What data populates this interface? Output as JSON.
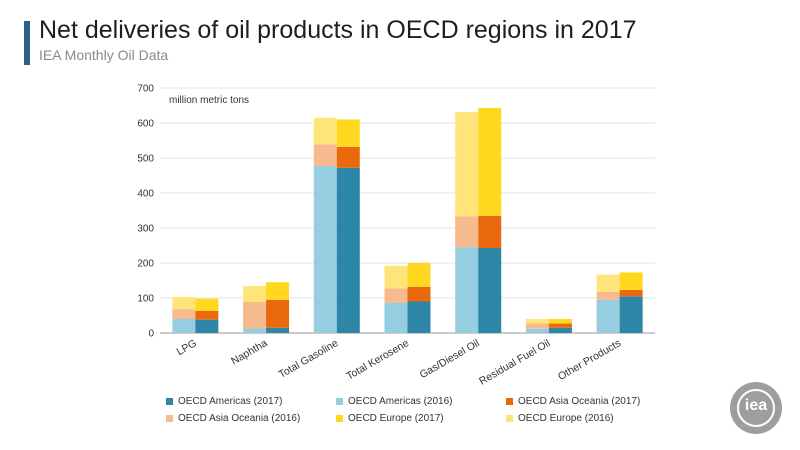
{
  "header": {
    "title": "Net deliveries of oil products in OECD regions in 2017",
    "subtitle": "IEA Monthly Oil Data"
  },
  "logo": {
    "text": "iea"
  },
  "chart_data": {
    "type": "bar",
    "stacked": true,
    "grouped": true,
    "unit_label": "million metric tons",
    "categories": [
      "LPG",
      "Naphtha",
      "Total Gasoline",
      "Total Kerosene",
      "Gas/Diesel Oil",
      "Residual Fuel Oil",
      "Other Products"
    ],
    "ylim": [
      0,
      700
    ],
    "yticks": [
      0,
      100,
      200,
      300,
      400,
      500,
      600,
      700
    ],
    "grid": true,
    "legend_position": "bottom",
    "series": [
      {
        "name": "OECD Americas (2017)",
        "group": "2017",
        "color": "#2e86a6",
        "values": [
          38,
          15,
          472,
          90,
          243,
          15,
          105
        ]
      },
      {
        "name": "OECD Americas (2016)",
        "group": "2016",
        "color": "#96cde0",
        "values": [
          40,
          13,
          477,
          86,
          245,
          12,
          95
        ]
      },
      {
        "name": "OECD Asia Oceania (2017)",
        "group": "2017",
        "color": "#e9690c",
        "values": [
          25,
          80,
          60,
          42,
          92,
          12,
          18
        ]
      },
      {
        "name": "OECD Asia Oceania (2016)",
        "group": "2016",
        "color": "#f7b98e",
        "values": [
          28,
          76,
          62,
          42,
          88,
          15,
          22
        ]
      },
      {
        "name": "OECD Europe (2017)",
        "group": "2017",
        "color": "#ffd81f",
        "values": [
          35,
          50,
          78,
          68,
          308,
          13,
          50
        ]
      },
      {
        "name": "OECD Europe (2016)",
        "group": "2016",
        "color": "#ffe47a",
        "values": [
          35,
          45,
          76,
          64,
          298,
          13,
          50
        ]
      }
    ]
  }
}
